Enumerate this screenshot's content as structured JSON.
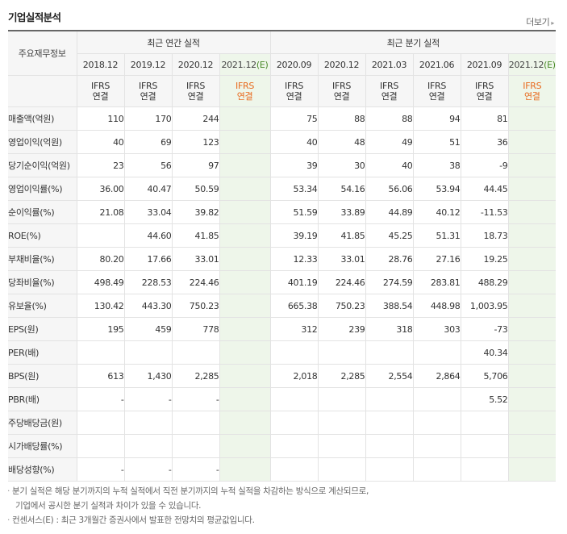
{
  "section_title": "기업실적분석",
  "more_label": "더보기",
  "header": {
    "row_label": "주요재무정보",
    "annual_group": "최근 연간 실적",
    "quarter_group": "최근 분기 실적",
    "periods": [
      "2018.12",
      "2019.12",
      "2020.12",
      "2021.12",
      "2020.09",
      "2020.12",
      "2021.03",
      "2021.06",
      "2021.09",
      "2021.12"
    ],
    "estimate_mark": "(E)",
    "basis_top": "IFRS",
    "basis_bottom": "연결"
  },
  "rows": [
    {
      "label": "매출액(억원)",
      "values": [
        "110",
        "170",
        "244",
        "",
        "75",
        "88",
        "88",
        "94",
        "81",
        ""
      ]
    },
    {
      "label": "영업이익(억원)",
      "values": [
        "40",
        "69",
        "123",
        "",
        "40",
        "48",
        "49",
        "51",
        "36",
        ""
      ]
    },
    {
      "label": "당기순이익(억원)",
      "values": [
        "23",
        "56",
        "97",
        "",
        "39",
        "30",
        "40",
        "38",
        "-9",
        ""
      ]
    },
    {
      "label": "영업이익률(%)",
      "values": [
        "36.00",
        "40.47",
        "50.59",
        "",
        "53.34",
        "54.16",
        "56.06",
        "53.94",
        "44.45",
        ""
      ]
    },
    {
      "label": "순이익률(%)",
      "values": [
        "21.08",
        "33.04",
        "39.82",
        "",
        "51.59",
        "33.89",
        "44.89",
        "40.12",
        "-11.53",
        ""
      ]
    },
    {
      "label": "ROE(%)",
      "values": [
        "",
        "44.60",
        "41.85",
        "",
        "39.19",
        "41.85",
        "45.25",
        "51.31",
        "18.73",
        ""
      ]
    },
    {
      "label": "부채비율(%)",
      "values": [
        "80.20",
        "17.66",
        "33.01",
        "",
        "12.33",
        "33.01",
        "28.76",
        "27.16",
        "19.25",
        ""
      ]
    },
    {
      "label": "당좌비율(%)",
      "values": [
        "498.49",
        "228.53",
        "224.46",
        "",
        "401.19",
        "224.46",
        "274.59",
        "283.81",
        "488.29",
        ""
      ]
    },
    {
      "label": "유보율(%)",
      "values": [
        "130.42",
        "443.30",
        "750.23",
        "",
        "665.38",
        "750.23",
        "388.54",
        "448.98",
        "1,003.95",
        ""
      ]
    },
    {
      "label": "EPS(원)",
      "values": [
        "195",
        "459",
        "778",
        "",
        "312",
        "239",
        "318",
        "303",
        "-73",
        ""
      ]
    },
    {
      "label": "PER(배)",
      "values": [
        "",
        "",
        "",
        "",
        "",
        "",
        "",
        "",
        "40.34",
        ""
      ]
    },
    {
      "label": "BPS(원)",
      "values": [
        "613",
        "1,430",
        "2,285",
        "",
        "2,018",
        "2,285",
        "2,554",
        "2,864",
        "5,706",
        ""
      ]
    },
    {
      "label": "PBR(배)",
      "values": [
        "-",
        "-",
        "-",
        "",
        "",
        "",
        "",
        "",
        "5.52",
        ""
      ]
    },
    {
      "label": "주당배당금(원)",
      "values": [
        "",
        "",
        "",
        "",
        "",
        "",
        "",
        "",
        "",
        ""
      ]
    },
    {
      "label": "시가배당률(%)",
      "values": [
        "",
        "",
        "",
        "",
        "",
        "",
        "",
        "",
        "",
        ""
      ]
    },
    {
      "label": "배당성향(%)",
      "values": [
        "-",
        "-",
        "-",
        "",
        "",
        "",
        "",
        "",
        "",
        ""
      ]
    }
  ],
  "notes": {
    "line1": "분기 실적은 해당 분기까지의 누적 실적에서 직전 분기까지의 누적 실적을 차감하는 방식으로 계산되므로,",
    "line2": "기업에서 공시한 분기 실적과 차이가 있을 수 있습니다.",
    "line3": "컨센서스(E) : 최근 3개월간 증권사에서 발표한 전망치의 평균값입니다."
  }
}
